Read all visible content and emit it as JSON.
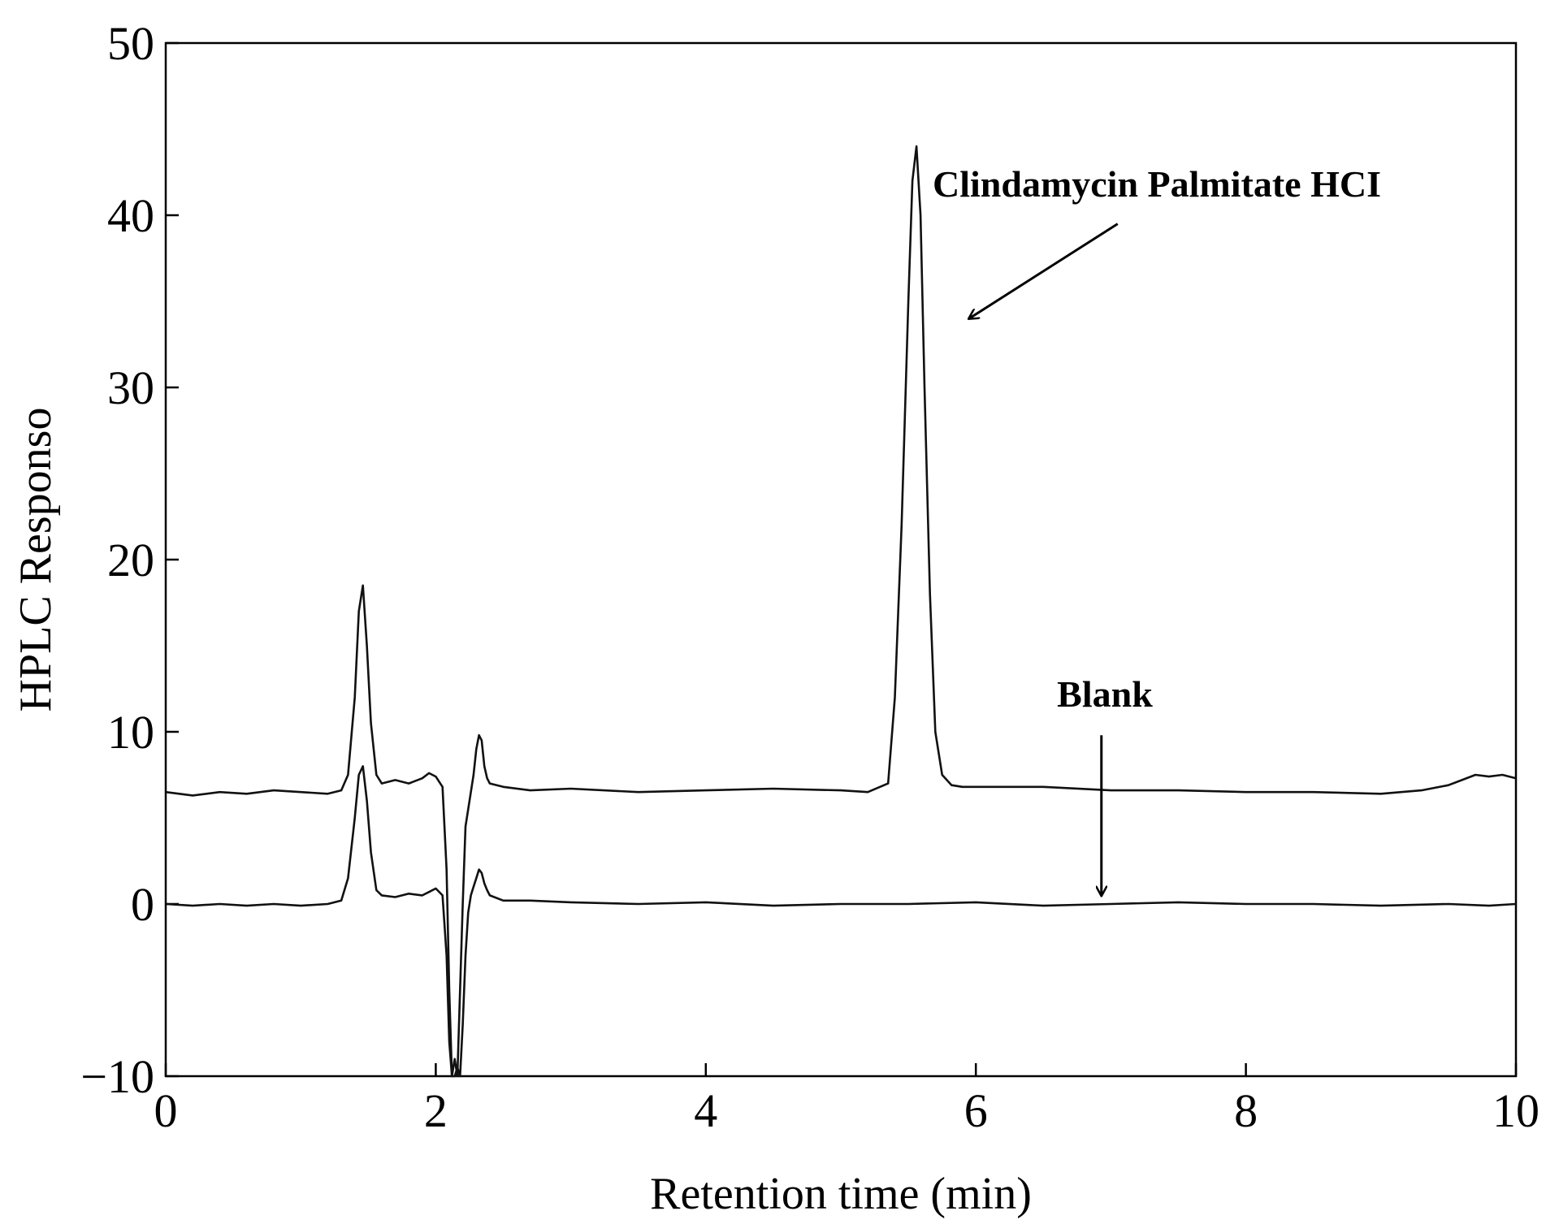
{
  "chart_data": {
    "type": "line",
    "title": "",
    "xlabel": "Retention time (min)",
    "ylabel": "HPLC Responso",
    "xlim": [
      0,
      10
    ],
    "ylim": [
      -10,
      50
    ],
    "xticks": [
      0,
      2,
      4,
      6,
      8,
      10
    ],
    "yticks": [
      -10,
      0,
      10,
      20,
      30,
      40,
      50
    ],
    "xtick_labels": [
      "0",
      "2",
      "4",
      "6",
      "8",
      "10"
    ],
    "ytick_labels": [
      "−10",
      "0",
      "10",
      "20",
      "30",
      "40",
      "50"
    ],
    "grid": false,
    "series": [
      {
        "name": "Clindamycin Palmitate HCI",
        "x": [
          0,
          0.2,
          0.4,
          0.6,
          0.8,
          1.0,
          1.2,
          1.3,
          1.35,
          1.4,
          1.43,
          1.46,
          1.49,
          1.52,
          1.56,
          1.6,
          1.7,
          1.8,
          1.9,
          1.95,
          2.0,
          2.05,
          2.08,
          2.1,
          2.12,
          2.14,
          2.16,
          2.18,
          2.2,
          2.22,
          2.24,
          2.26,
          2.28,
          2.3,
          2.32,
          2.34,
          2.36,
          2.38,
          2.4,
          2.5,
          2.7,
          3.0,
          3.5,
          4.0,
          4.5,
          5.0,
          5.2,
          5.35,
          5.4,
          5.45,
          5.5,
          5.53,
          5.56,
          5.59,
          5.62,
          5.66,
          5.7,
          5.75,
          5.82,
          5.9,
          6.5,
          7.0,
          7.5,
          8.0,
          8.5,
          9.0,
          9.3,
          9.5,
          9.6,
          9.7,
          9.8,
          9.9,
          10.0
        ],
        "y": [
          6.5,
          6.3,
          6.5,
          6.4,
          6.6,
          6.5,
          6.4,
          6.6,
          7.5,
          12.0,
          17.0,
          18.5,
          15.0,
          10.5,
          7.5,
          7.0,
          7.2,
          7.0,
          7.3,
          7.6,
          7.4,
          6.8,
          2.0,
          -5.0,
          -10.5,
          -9.0,
          -10.5,
          -5.0,
          0.0,
          4.5,
          5.5,
          6.5,
          7.5,
          9.0,
          9.8,
          9.5,
          8.0,
          7.3,
          7.0,
          6.8,
          6.6,
          6.7,
          6.5,
          6.6,
          6.7,
          6.6,
          6.5,
          7.0,
          12.0,
          22.0,
          35.0,
          42.0,
          44.0,
          40.0,
          30.0,
          18.0,
          10.0,
          7.5,
          6.9,
          6.8,
          6.8,
          6.6,
          6.6,
          6.5,
          6.5,
          6.4,
          6.6,
          6.9,
          7.2,
          7.5,
          7.4,
          7.5,
          7.3
        ]
      },
      {
        "name": "Blank",
        "x": [
          0,
          0.2,
          0.4,
          0.6,
          0.8,
          1.0,
          1.2,
          1.3,
          1.35,
          1.4,
          1.43,
          1.46,
          1.49,
          1.52,
          1.56,
          1.6,
          1.7,
          1.8,
          1.9,
          1.95,
          2.0,
          2.05,
          2.08,
          2.1,
          2.12,
          2.14,
          2.16,
          2.18,
          2.2,
          2.22,
          2.24,
          2.26,
          2.28,
          2.3,
          2.32,
          2.34,
          2.36,
          2.38,
          2.4,
          2.5,
          2.7,
          3.0,
          3.5,
          4.0,
          4.5,
          5.0,
          5.5,
          6.0,
          6.5,
          7.0,
          7.5,
          8.0,
          8.5,
          9.0,
          9.5,
          9.8,
          10.0
        ],
        "y": [
          0.0,
          -0.1,
          0.0,
          -0.1,
          0.0,
          -0.1,
          0.0,
          0.2,
          1.5,
          5.0,
          7.5,
          8.0,
          6.0,
          3.0,
          0.8,
          0.5,
          0.4,
          0.6,
          0.5,
          0.7,
          0.9,
          0.5,
          -3.0,
          -8.0,
          -10.5,
          -10.5,
          -9.5,
          -10.5,
          -7.0,
          -3.0,
          -0.5,
          0.5,
          1.0,
          1.5,
          2.0,
          1.8,
          1.2,
          0.8,
          0.5,
          0.2,
          0.2,
          0.1,
          0.0,
          0.1,
          -0.1,
          0.0,
          0.0,
          0.1,
          -0.1,
          0.0,
          0.1,
          0.0,
          0.0,
          -0.1,
          0.0,
          -0.1,
          0.0
        ]
      }
    ],
    "annotations": [
      {
        "text": "Clindamycin Palmitate HCI",
        "arrow_from": [
          7.05,
          39.5
        ],
        "arrow_to": [
          5.95,
          34.0
        ]
      },
      {
        "text": "Blank",
        "arrow_from": [
          6.93,
          9.8
        ],
        "arrow_to": [
          6.93,
          0.5
        ]
      }
    ]
  }
}
